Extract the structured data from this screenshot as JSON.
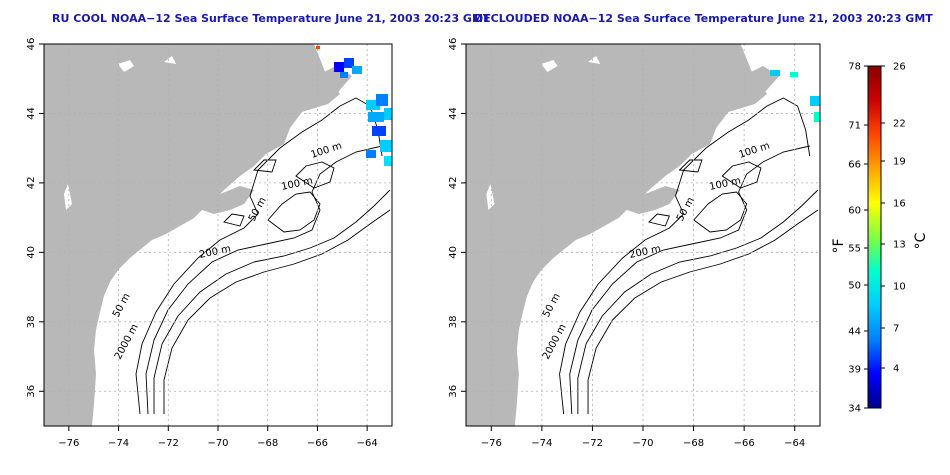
{
  "maps": [
    {
      "title": "RU COOL NOAA−12 Sea Surface Temperature June 21, 2003 20:23 GMT",
      "contour_labels": [
        "100 m",
        "100 m",
        "50 m",
        "200 m",
        "50 m",
        "2000 m"
      ]
    },
    {
      "title": "DECLOUDED NOAA−12 Sea Surface Temperature June 21, 2003 20:23 GMT",
      "contour_labels": [
        "100 m",
        "100 m",
        "50 m",
        "200 m",
        "50 m",
        "2000 m"
      ]
    }
  ],
  "axes": {
    "lon_ticks": [
      "−76",
      "−74",
      "−72",
      "−70",
      "−68",
      "−66",
      "−64"
    ],
    "lat_ticks": [
      "46",
      "44",
      "42",
      "40",
      "38",
      "36"
    ],
    "lon_range": [
      -77,
      -63
    ],
    "lat_range": [
      35,
      46
    ]
  },
  "colorbar": {
    "f_label": "°F",
    "c_label": "°C",
    "f_ticks": [
      "78",
      "71",
      "66",
      "60",
      "55",
      "50",
      "44",
      "39",
      "34"
    ],
    "c_ticks": [
      "26",
      "22",
      "19",
      "16",
      "13",
      "10",
      "7",
      "4"
    ],
    "colors": [
      "#00008b",
      "#0000ff",
      "#0080ff",
      "#00ccff",
      "#00ffcc",
      "#80ff40",
      "#ffff00",
      "#ffa500",
      "#ff4500",
      "#cc0000",
      "#8b0000"
    ]
  }
}
